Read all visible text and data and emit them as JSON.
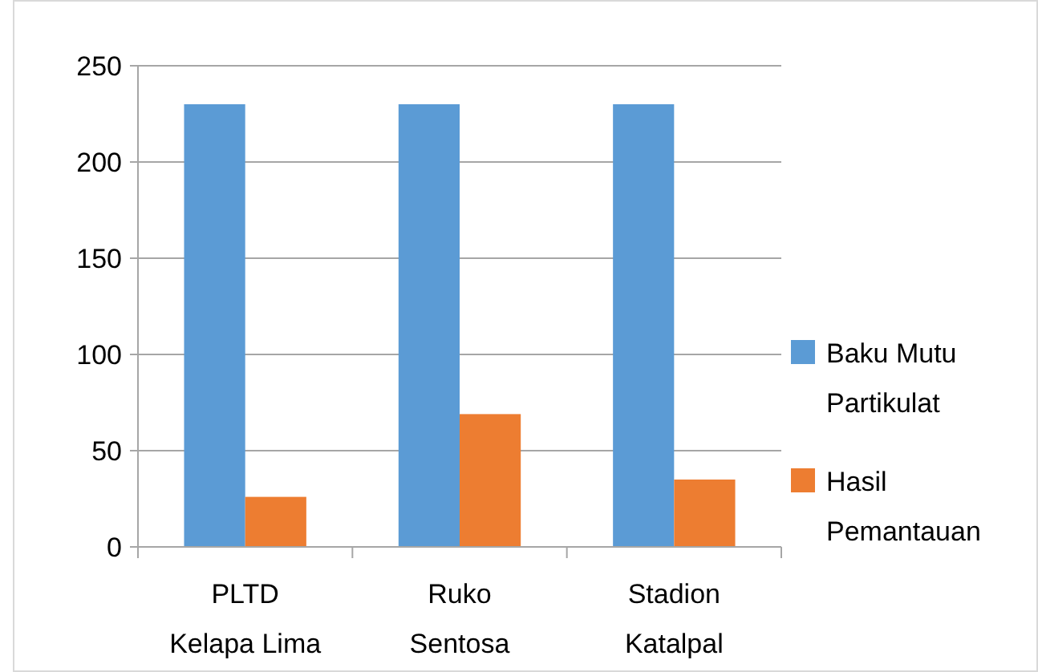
{
  "chart_data": {
    "type": "bar",
    "categories": [
      "PLTD Kelapa Lima",
      "Ruko Sentosa",
      "Stadion Katalpal"
    ],
    "series": [
      {
        "name": "Baku Mutu Partikulat",
        "color": "#5b9bd5",
        "values": [
          230,
          230,
          230
        ]
      },
      {
        "name": "Hasil Pemantauan",
        "color": "#ed7d31",
        "values": [
          26,
          69,
          35
        ]
      }
    ],
    "ylim": [
      0,
      250
    ],
    "yticks": [
      0,
      50,
      100,
      150,
      200,
      250
    ],
    "grid": "y",
    "legend": "right"
  }
}
